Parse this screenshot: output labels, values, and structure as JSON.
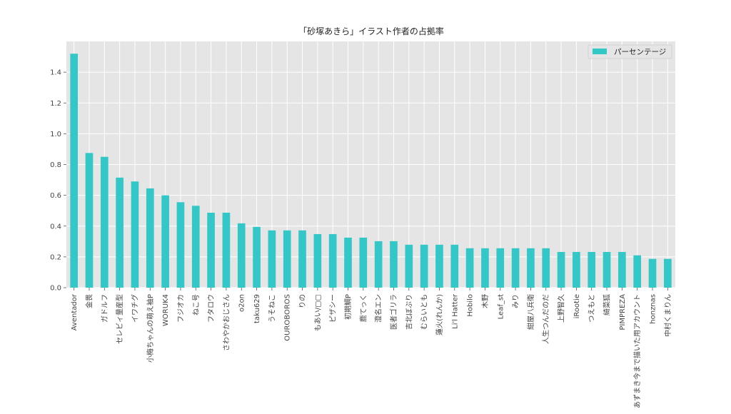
{
  "chart_data": {
    "type": "bar",
    "title": "「砂塚あきら」イラスト作者の占拠率",
    "xlabel": "",
    "ylabel": "",
    "ylim": [
      0,
      1.6
    ],
    "yticks": [
      0.0,
      0.2,
      0.4,
      0.6,
      0.8,
      1.0,
      1.2,
      1.4
    ],
    "ytick_labels": [
      "0.0",
      "0.2",
      "0.4",
      "0.6",
      "0.8",
      "1.0",
      "1.2",
      "1.4"
    ],
    "grid": true,
    "legend_position": "top-right",
    "categories": [
      "Aventador",
      "金畏",
      "ガドルフ",
      "セレビィ量産型",
      "イワチグ",
      "小梅ちゃんの萌え袖P",
      "WORUK4",
      "フジオカ",
      "ねこ号",
      "フタロウ",
      "さわやかおじさん",
      "o2on",
      "taku629",
      "うそねこ",
      "OUROBOROS",
      "りの",
      "もあい/▢▢",
      "ピザシー",
      "初期鯛P",
      "鹿てっく",
      "澄名エン",
      "医者ゴリラ",
      "吉北ぼぶり",
      "むらいとも",
      "蓮火(れんか)",
      "Li'l Hatter",
      "Hobilo",
      "木野",
      "Leaf_st",
      "みり",
      "紺屋八兵衛",
      "人生つんだのだ",
      "上野智久",
      "iRootie",
      "つえもと",
      "綺菜狐",
      "PIMPREZA",
      "あずまき今まで描いた用アカウント",
      "honznas",
      "中村くまりん"
    ],
    "series": [
      {
        "name": "パーセンテージ",
        "color": "#33c7c7",
        "values": [
          1.52,
          0.875,
          0.85,
          0.715,
          0.69,
          0.645,
          0.6,
          0.555,
          0.532,
          0.487,
          0.487,
          0.418,
          0.395,
          0.372,
          0.372,
          0.372,
          0.348,
          0.348,
          0.325,
          0.325,
          0.302,
          0.302,
          0.279,
          0.279,
          0.279,
          0.279,
          0.256,
          0.256,
          0.256,
          0.256,
          0.256,
          0.256,
          0.232,
          0.232,
          0.232,
          0.232,
          0.232,
          0.21,
          0.187,
          0.187
        ]
      }
    ],
    "colors": {
      "plot_background": "#e5e5e5",
      "grid": "#ffffff",
      "bar": "#33c7c7",
      "text": "#444444"
    }
  }
}
